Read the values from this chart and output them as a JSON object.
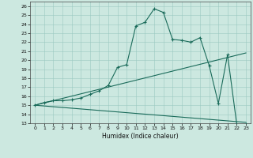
{
  "title": "",
  "xlabel": "Humidex (Indice chaleur)",
  "ylabel": "",
  "xlim": [
    -0.5,
    23.5
  ],
  "ylim": [
    13,
    26.5
  ],
  "yticks": [
    13,
    14,
    15,
    16,
    17,
    18,
    19,
    20,
    21,
    22,
    23,
    24,
    25,
    26
  ],
  "xticks": [
    0,
    1,
    2,
    3,
    4,
    5,
    6,
    7,
    8,
    9,
    10,
    11,
    12,
    13,
    14,
    15,
    16,
    17,
    18,
    19,
    20,
    21,
    22,
    23
  ],
  "background_color": "#cce8e0",
  "line_color": "#1a6b5a",
  "main_line": [
    [
      0,
      15.0
    ],
    [
      1,
      15.3
    ],
    [
      2,
      15.5
    ],
    [
      3,
      15.5
    ],
    [
      4,
      15.6
    ],
    [
      5,
      15.8
    ],
    [
      6,
      16.2
    ],
    [
      7,
      16.6
    ],
    [
      8,
      17.2
    ],
    [
      9,
      19.2
    ],
    [
      10,
      19.5
    ],
    [
      11,
      23.8
    ],
    [
      12,
      24.2
    ],
    [
      13,
      25.7
    ],
    [
      14,
      25.3
    ],
    [
      15,
      22.3
    ],
    [
      16,
      22.2
    ],
    [
      17,
      22.0
    ],
    [
      18,
      22.5
    ],
    [
      19,
      19.4
    ],
    [
      20,
      15.2
    ],
    [
      21,
      20.6
    ],
    [
      22,
      12.9
    ],
    [
      23,
      12.9
    ]
  ],
  "line2": [
    [
      0,
      15.0
    ],
    [
      23,
      20.8
    ]
  ],
  "line3": [
    [
      0,
      15.0
    ],
    [
      23,
      13.1
    ]
  ]
}
